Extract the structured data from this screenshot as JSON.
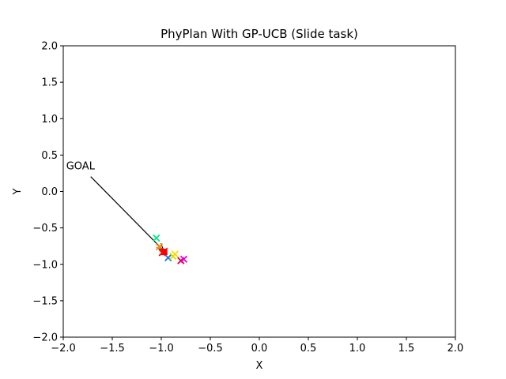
{
  "chart_data": {
    "type": "scatter",
    "title": "PhyPlan With GP-UCB (Slide task)",
    "xlabel": "X",
    "ylabel": "Y",
    "xlim": [
      -2.0,
      2.0
    ],
    "ylim": [
      -2.0,
      2.0
    ],
    "xticks": [
      -2.0,
      -1.5,
      -1.0,
      -0.5,
      0.0,
      0.5,
      1.0,
      1.5,
      2.0
    ],
    "yticks": [
      -2.0,
      -1.5,
      -1.0,
      -0.5,
      0.0,
      0.5,
      1.0,
      1.5,
      2.0
    ],
    "xtick_labels": [
      "−2.0",
      "−1.5",
      "−1.0",
      "−0.5",
      "0.0",
      "0.5",
      "1.0",
      "1.5",
      "2.0"
    ],
    "ytick_labels": [
      "−2.0",
      "−1.5",
      "−1.0",
      "−0.5",
      "0.0",
      "0.5",
      "1.0",
      "1.5",
      "2.0"
    ],
    "grid": false,
    "goal": {
      "x": -0.97,
      "y": -0.83,
      "marker": "square",
      "color": "#ff0000"
    },
    "annotation": {
      "text": "GOAL",
      "text_x": -1.97,
      "text_y": 0.15,
      "target_x": -0.97,
      "target_y": -0.83
    },
    "points": [
      {
        "x": -1.05,
        "y": -0.64,
        "color": "#00e68a"
      },
      {
        "x": -1.02,
        "y": -0.76,
        "color": "#ff8c00"
      },
      {
        "x": -0.99,
        "y": -0.84,
        "color": "#ff0000"
      },
      {
        "x": -0.97,
        "y": -0.82,
        "color": "#ff3300"
      },
      {
        "x": -0.93,
        "y": -0.91,
        "color": "#1f77e4"
      },
      {
        "x": -0.88,
        "y": -0.89,
        "color": "#c8e000"
      },
      {
        "x": -0.86,
        "y": -0.86,
        "color": "#ffd700"
      },
      {
        "x": -0.8,
        "y": -0.95,
        "color": "#e6002e"
      },
      {
        "x": -0.77,
        "y": -0.93,
        "color": "#e600e6"
      }
    ]
  }
}
